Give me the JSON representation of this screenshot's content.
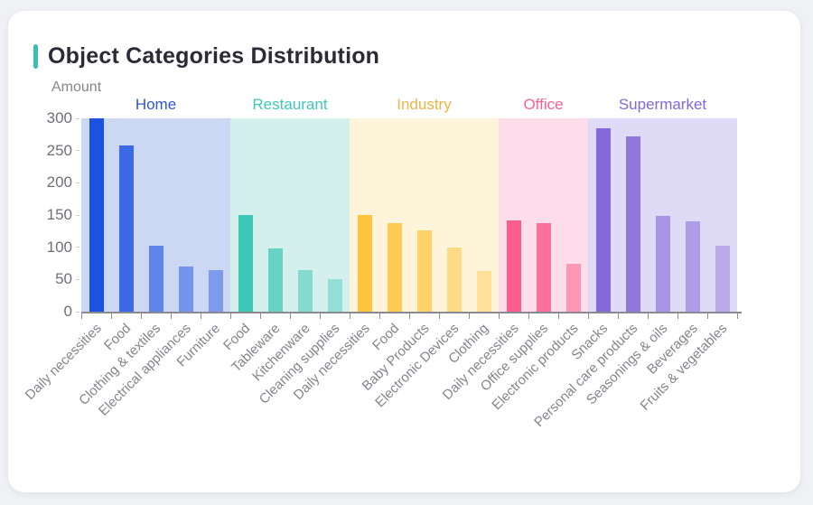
{
  "card": {
    "title": "Object Categories Distribution",
    "accent_color": "#3bbfb2"
  },
  "chart_data": {
    "type": "bar",
    "title": "Object Categories Distribution",
    "xlabel": "",
    "ylabel": "Amount",
    "ylim": [
      0,
      300
    ],
    "yticks": [
      0,
      50,
      100,
      150,
      200,
      250,
      300
    ],
    "grid": false,
    "legend_position": "group-headers-top",
    "groups": [
      {
        "name": "Home",
        "label_color": "#2f55d6",
        "bar_color": "#1c52e2",
        "panel_color": "#ccd7f4",
        "bar_opacities": [
          1,
          0.82,
          0.62,
          0.5,
          0.45
        ],
        "items": [
          {
            "label": "Daily necessities",
            "value": 300
          },
          {
            "label": "Food",
            "value": 258
          },
          {
            "label": "Clothing & textiles",
            "value": 103
          },
          {
            "label": "Electrical appliances",
            "value": 70
          },
          {
            "label": "Furniture",
            "value": 64
          }
        ]
      },
      {
        "name": "Restaurant",
        "label_color": "#3fc8b7",
        "bar_color": "#3ec6b5",
        "panel_color": "#d4f0ec",
        "bar_opacities": [
          1,
          0.72,
          0.52,
          0.42
        ],
        "items": [
          {
            "label": "Food",
            "value": 150
          },
          {
            "label": "Tableware",
            "value": 98
          },
          {
            "label": "Kitchenware",
            "value": 65
          },
          {
            "label": "Cleaning supplies",
            "value": 51
          }
        ]
      },
      {
        "name": "Industry",
        "label_color": "#edb445",
        "bar_color": "#fec43d",
        "panel_color": "#fdf4da",
        "bar_opacities": [
          1,
          0.85,
          0.72,
          0.55,
          0.42
        ],
        "items": [
          {
            "label": "Daily necessities",
            "value": 150
          },
          {
            "label": "Food",
            "value": 138
          },
          {
            "label": "Baby Products",
            "value": 126
          },
          {
            "label": "Electronic Devices",
            "value": 100
          },
          {
            "label": "Clothing",
            "value": 63
          }
        ]
      },
      {
        "name": "Office",
        "label_color": "#f9628f",
        "bar_color": "#fb5e8c",
        "panel_color": "#fcdde9",
        "bar_opacities": [
          1,
          0.85,
          0.55
        ],
        "items": [
          {
            "label": "Daily necessities",
            "value": 142
          },
          {
            "label": "Office supplies",
            "value": 138
          },
          {
            "label": "Electronic products",
            "value": 75
          }
        ]
      },
      {
        "name": "Supermarket",
        "label_color": "#7f68da",
        "bar_color": "#8569d8",
        "panel_color": "#dfdaf6",
        "bar_opacities": [
          1,
          0.88,
          0.62,
          0.54,
          0.42
        ],
        "items": [
          {
            "label": "Snacks",
            "value": 285
          },
          {
            "label": "Personal care products",
            "value": 272
          },
          {
            "label": "Seasonings & oils",
            "value": 148
          },
          {
            "label": "Beverages",
            "value": 140
          },
          {
            "label": "Fruits & vegetables",
            "value": 102
          }
        ]
      }
    ]
  }
}
